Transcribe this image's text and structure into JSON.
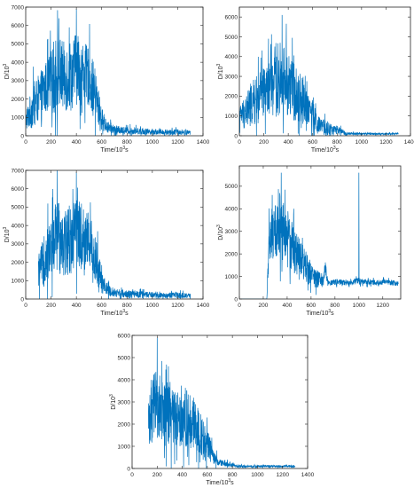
{
  "figure": {
    "series_color": "#0072BD",
    "axes_color": "#262626"
  },
  "chart_data": [
    {
      "type": "line",
      "xlabel_main": "Time/10",
      "xlabel_exp": "3",
      "xlabel_unit": "s",
      "ylabel_main": "D/10",
      "ylabel_exp": "3",
      "xlim": [
        0,
        1400
      ],
      "ylim": [
        0,
        7000
      ],
      "xticks": [
        0,
        200,
        400,
        600,
        800,
        1000,
        1200,
        1400
      ],
      "yticks": [
        0,
        1000,
        2000,
        3000,
        4000,
        5000,
        6000,
        7000
      ],
      "grid": false,
      "legend": "none",
      "trace_range": [
        0,
        1300
      ],
      "trace_peak": 6900,
      "x": [
        0,
        50,
        100,
        150,
        200,
        230,
        250,
        300,
        350,
        400,
        450,
        500,
        550,
        600,
        650,
        700,
        750,
        800,
        900,
        1000,
        1100,
        1200,
        1300
      ],
      "y": [
        800,
        1500,
        2000,
        2500,
        3000,
        3200,
        3500,
        3200,
        3300,
        3600,
        3400,
        3200,
        2200,
        900,
        450,
        350,
        300,
        280,
        250,
        220,
        200,
        200,
        180
      ],
      "band": [
        600,
        1400,
        1600,
        1800,
        2000,
        2800,
        2600,
        2400,
        2500,
        2400,
        2200,
        2000,
        1800,
        800,
        400,
        300,
        250,
        250,
        220,
        200,
        180,
        200,
        150
      ]
    },
    {
      "type": "line",
      "xlabel_main": "Time/10",
      "xlabel_exp": "3",
      "xlabel_unit": "s",
      "ylabel_main": "D/10",
      "ylabel_exp": "3",
      "xlim": [
        0,
        1400
      ],
      "ylim": [
        0,
        6500
      ],
      "xticks": [
        0,
        200,
        400,
        600,
        800,
        1000,
        1200,
        1400
      ],
      "yticks": [
        0,
        1000,
        2000,
        3000,
        4000,
        5000,
        6000
      ],
      "grid": false,
      "legend": "none",
      "trace_range": [
        0,
        1300
      ],
      "trace_peak": 6100,
      "x": [
        0,
        50,
        100,
        150,
        200,
        250,
        300,
        350,
        400,
        450,
        500,
        550,
        600,
        650,
        700,
        750,
        800,
        850,
        900,
        1000,
        1100,
        1200,
        1300
      ],
      "y": [
        1000,
        1200,
        1600,
        1800,
        2200,
        2500,
        2800,
        3000,
        2600,
        2200,
        1900,
        1700,
        1000,
        500,
        400,
        300,
        280,
        150,
        100,
        100,
        100,
        100,
        100
      ],
      "band": [
        600,
        1200,
        1400,
        1600,
        1600,
        1800,
        2400,
        2200,
        2200,
        1800,
        1600,
        1400,
        1000,
        600,
        500,
        400,
        300,
        150,
        80,
        60,
        60,
        60,
        60
      ]
    },
    {
      "type": "line",
      "xlabel_main": "Time/10",
      "xlabel_exp": "3",
      "xlabel_unit": "s",
      "ylabel_main": "D/10",
      "ylabel_exp": "3",
      "xlim": [
        0,
        1400
      ],
      "ylim": [
        0,
        7000
      ],
      "xticks": [
        0,
        200,
        400,
        600,
        800,
        1000,
        1200,
        1400
      ],
      "yticks": [
        0,
        1000,
        2000,
        3000,
        4000,
        5000,
        6000,
        7000
      ],
      "grid": false,
      "legend": "none",
      "trace_range": [
        100,
        1300
      ],
      "trace_peak": 6900,
      "x": [
        100,
        130,
        150,
        200,
        230,
        250,
        300,
        350,
        400,
        450,
        500,
        550,
        600,
        650,
        700,
        750,
        800,
        900,
        1000,
        1100,
        1200,
        1300
      ],
      "y": [
        1500,
        1800,
        2200,
        2800,
        3200,
        3500,
        3200,
        3300,
        3600,
        3400,
        3200,
        2200,
        900,
        450,
        350,
        300,
        280,
        250,
        220,
        200,
        200,
        180
      ],
      "band": [
        1200,
        1600,
        1800,
        2000,
        2800,
        2600,
        2400,
        2500,
        2400,
        2200,
        2000,
        1800,
        800,
        400,
        300,
        250,
        250,
        220,
        200,
        180,
        200,
        150
      ]
    },
    {
      "type": "line",
      "xlabel_main": "Time/10",
      "xlabel_exp": "3",
      "xlabel_unit": "s",
      "ylabel_main": "D/10",
      "ylabel_exp": "3",
      "xlim": [
        0,
        1350
      ],
      "ylim": [
        0,
        5900
      ],
      "xticks": [
        0,
        200,
        400,
        600,
        800,
        1000,
        1200
      ],
      "yticks": [
        0,
        1000,
        2000,
        3000,
        4000,
        5000
      ],
      "grid": false,
      "legend": "none",
      "trace_range": [
        0,
        1330
      ],
      "trace_peak": 5600,
      "trace_spike": [
        1000,
        5600
      ],
      "x": [
        0,
        200,
        230,
        250,
        300,
        350,
        400,
        450,
        500,
        550,
        600,
        650,
        700,
        720,
        740,
        800,
        900,
        1000,
        1100,
        1200,
        1330
      ],
      "y": [
        0,
        0,
        0,
        2500,
        3000,
        3200,
        2800,
        2200,
        1800,
        1500,
        1100,
        900,
        800,
        1400,
        700,
        750,
        720,
        800,
        720,
        750,
        700
      ],
      "band": [
        0,
        0,
        0,
        1200,
        1600,
        1800,
        1600,
        1400,
        1200,
        900,
        700,
        500,
        400,
        400,
        150,
        180,
        150,
        200,
        150,
        150,
        150
      ]
    },
    {
      "type": "line",
      "xlabel_main": "Time/10",
      "xlabel_exp": "3",
      "xlabel_unit": "s",
      "ylabel_main": "D/10",
      "ylabel_exp": "3",
      "xlim": [
        0,
        1400
      ],
      "ylim": [
        0,
        6000
      ],
      "xticks": [
        0,
        200,
        400,
        600,
        800,
        1000,
        1200,
        1400
      ],
      "yticks": [
        0,
        1000,
        2000,
        3000,
        4000,
        5000,
        6000
      ],
      "grid": false,
      "legend": "none",
      "trace_range": [
        130,
        1300
      ],
      "trace_peak": 5900,
      "x": [
        130,
        150,
        200,
        250,
        300,
        350,
        400,
        450,
        500,
        550,
        600,
        650,
        700,
        750,
        800,
        850,
        900,
        1000,
        1100,
        1200,
        1300
      ],
      "y": [
        2000,
        2600,
        2800,
        2500,
        2400,
        2300,
        2400,
        2200,
        2000,
        1500,
        1100,
        500,
        250,
        200,
        150,
        100,
        100,
        100,
        100,
        100,
        100
      ],
      "band": [
        1600,
        1800,
        2200,
        1800,
        1600,
        1600,
        1800,
        1600,
        1400,
        1200,
        900,
        400,
        200,
        150,
        120,
        80,
        60,
        60,
        60,
        60,
        60
      ]
    }
  ]
}
